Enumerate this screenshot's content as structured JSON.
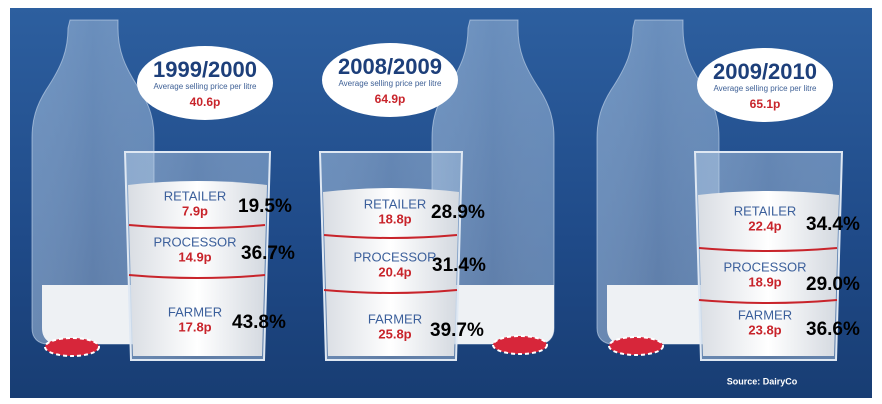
{
  "panels": [
    {
      "period": "1999/2000",
      "subtitle": "Average selling price per litre",
      "price": "40.6p",
      "segments": [
        {
          "label": "RETAILER",
          "price": "7.9p",
          "share": "19.5%"
        },
        {
          "label": "PROCESSOR",
          "price": "14.9p",
          "share": "36.7%"
        },
        {
          "label": "FARMER",
          "price": "17.8p",
          "share": "43.8%"
        }
      ]
    },
    {
      "period": "2008/2009",
      "subtitle": "Average selling price per litre",
      "price": "64.9p",
      "segments": [
        {
          "label": "RETAILER",
          "price": "18.8p",
          "share": "28.9%"
        },
        {
          "label": "PROCESSOR",
          "price": "20.4p",
          "share": "31.4%"
        },
        {
          "label": "FARMER",
          "price": "25.8p",
          "share": "39.7%"
        }
      ]
    },
    {
      "period": "2009/2010",
      "subtitle": "Average selling price per litre",
      "price": "65.1p",
      "segments": [
        {
          "label": "RETAILER",
          "price": "22.4p",
          "share": "34.4%"
        },
        {
          "label": "PROCESSOR",
          "price": "18.9p",
          "share": "29.0%"
        },
        {
          "label": "FARMER",
          "price": "23.8p",
          "share": "36.6%"
        }
      ]
    }
  ],
  "source": "Source: DairyCo"
}
